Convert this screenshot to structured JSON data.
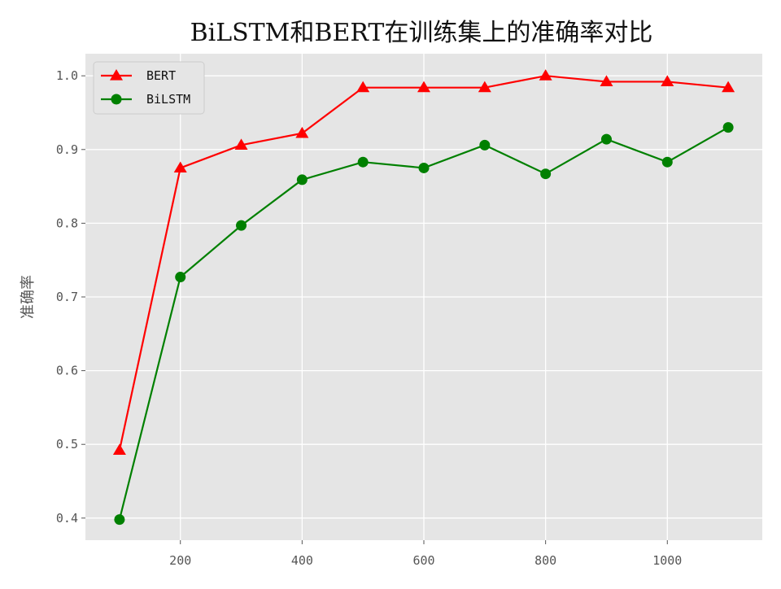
{
  "chart_data": {
    "type": "line",
    "title": "BiLSTM和BERT在训练集上的准确率对比",
    "xlabel": "",
    "ylabel": "准确率",
    "x": [
      100,
      200,
      300,
      400,
      500,
      600,
      700,
      800,
      900,
      1000,
      1100
    ],
    "series": [
      {
        "name": "BERT",
        "color": "#ff0000",
        "marker": "triangle",
        "values": [
          0.492,
          0.875,
          0.906,
          0.922,
          0.984,
          0.984,
          0.984,
          1.0,
          0.992,
          0.992,
          0.984
        ]
      },
      {
        "name": "BiLSTM",
        "color": "#008000",
        "marker": "circle",
        "values": [
          0.398,
          0.727,
          0.797,
          0.859,
          0.883,
          0.875,
          0.906,
          0.867,
          0.914,
          0.883,
          0.93
        ]
      }
    ],
    "xticks": [
      "200",
      "400",
      "600",
      "800",
      "1000"
    ],
    "yticks": [
      "0.4",
      "0.5",
      "0.6",
      "0.7",
      "0.8",
      "0.9",
      "1.0"
    ],
    "xlim": [
      44,
      1156
    ],
    "ylim": [
      0.37,
      1.03
    ],
    "grid": true,
    "legend_position": "top-left",
    "plot_background": "#e5e5e5",
    "grid_color": "#ffffff"
  }
}
